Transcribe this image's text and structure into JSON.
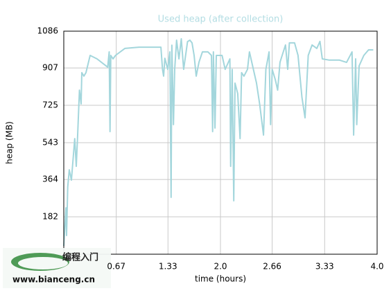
{
  "chart_data": {
    "type": "line",
    "title": "Used heap (after collection)",
    "x_label": "time (hours)",
    "y_label": "heap (MB)",
    "xlim": [
      0,
      4
    ],
    "ylim": [
      0,
      1086
    ],
    "xticks": [
      0.67,
      1.33,
      {
        "value": 2,
        "label": "2.0"
      },
      2.66,
      3.33,
      {
        "value": 4,
        "label": "4.0"
      }
    ],
    "yticks": [
      182,
      364,
      543,
      725,
      907,
      1086
    ],
    "grid": true,
    "series": [
      {
        "name": "Used heap (after collection)",
        "color": "#a3d6dc",
        "x": [
          0,
          0.027,
          0.035,
          0.05,
          0.07,
          0.097,
          0.115,
          0.14,
          0.159,
          0.177,
          0.2,
          0.221,
          0.23,
          0.257,
          0.283,
          0.336,
          0.425,
          0.56,
          0.58,
          0.59,
          0.6,
          0.628,
          0.66,
          0.78,
          0.96,
          1.24,
          1.26,
          1.274,
          1.29,
          1.327,
          1.354,
          1.37,
          1.38,
          1.4,
          1.416,
          1.44,
          1.47,
          1.5,
          1.53,
          1.58,
          1.61,
          1.637,
          1.664,
          1.69,
          1.726,
          1.77,
          1.84,
          1.885,
          1.9,
          1.91,
          1.93,
          1.947,
          2.02,
          2.06,
          2.12,
          2.13,
          2.15,
          2.17,
          2.186,
          2.22,
          2.25,
          2.27,
          2.3,
          2.345,
          2.37,
          2.42,
          2.46,
          2.5,
          2.55,
          2.58,
          2.62,
          2.64,
          2.66,
          2.7,
          2.73,
          2.76,
          2.788,
          2.83,
          2.858,
          2.88,
          2.946,
          2.99,
          3.04,
          3.08,
          3.12,
          3.17,
          3.23,
          3.27,
          3.3,
          3.39,
          3.52,
          3.61,
          3.68,
          3.7,
          3.726,
          3.74,
          3.77,
          3.83,
          3.89,
          3.95
        ],
        "values": [
          40,
          226,
          91,
          327,
          411,
          361,
          445,
          563,
          428,
          580,
          799,
          732,
          884,
          867,
          884,
          968,
          951,
          911,
          985,
          597,
          968,
          951,
          968,
          1002,
          1008,
          1008,
          900,
          867,
          954,
          900,
          985,
          277,
          1018,
          631,
          900,
          1042,
          951,
          1049,
          900,
          1035,
          1042,
          1029,
          968,
          867,
          935,
          985,
          985,
          968,
          597,
          985,
          614,
          968,
          968,
          900,
          951,
          428,
          900,
          260,
          833,
          782,
          563,
          884,
          867,
          900,
          985,
          900,
          833,
          732,
          580,
          900,
          985,
          631,
          900,
          850,
          799,
          935,
          968,
          1019,
          900,
          1029,
          1029,
          968,
          765,
          664,
          968,
          1019,
          1002,
          1036,
          951,
          945,
          945,
          934,
          985,
          580,
          951,
          631,
          917,
          968,
          995,
          995
        ]
      }
    ]
  },
  "watermark": {
    "title": "编程入门",
    "url": "www.bianceng.cn"
  }
}
